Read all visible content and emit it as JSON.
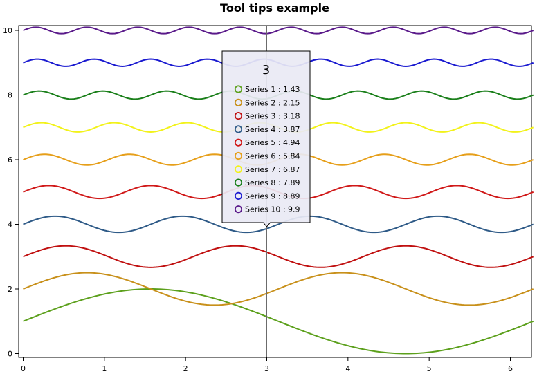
{
  "chart_data": {
    "type": "line",
    "title": "Tool tips example",
    "xlabel": "",
    "ylabel": "",
    "xlim": [
      0,
      6.283
    ],
    "ylim": [
      0,
      10
    ],
    "x_ticks": [
      0,
      1,
      2,
      3,
      4,
      5,
      6
    ],
    "y_ticks": [
      0,
      2,
      4,
      6,
      8,
      10
    ],
    "grid": false,
    "x_samples": 200,
    "series": [
      {
        "name": "Series 1",
        "offset": 1,
        "amplitude": 1.0,
        "frequency": 1,
        "color": "#5ca01c"
      },
      {
        "name": "Series 2",
        "offset": 2,
        "amplitude": 0.5,
        "frequency": 2,
        "color": "#c8901a"
      },
      {
        "name": "Series 3",
        "offset": 3,
        "amplitude": 0.333,
        "frequency": 3,
        "color": "#c01010"
      },
      {
        "name": "Series 4",
        "offset": 4,
        "amplitude": 0.25,
        "frequency": 4,
        "color": "#2e5a87"
      },
      {
        "name": "Series 5",
        "offset": 5,
        "amplitude": 0.2,
        "frequency": 5,
        "color": "#d01818"
      },
      {
        "name": "Series 6",
        "offset": 6,
        "amplitude": 0.167,
        "frequency": 6,
        "color": "#e69f1a"
      },
      {
        "name": "Series 7",
        "offset": 7,
        "amplitude": 0.143,
        "frequency": 7,
        "color": "#f2f21a"
      },
      {
        "name": "Series 8",
        "offset": 8,
        "amplitude": 0.125,
        "frequency": 8,
        "color": "#1a7f1a"
      },
      {
        "name": "Series 9",
        "offset": 9,
        "amplitude": 0.111,
        "frequency": 9,
        "color": "#1a1ad0"
      },
      {
        "name": "Series 10",
        "offset": 10,
        "amplitude": 0.1,
        "frequency": 10,
        "color": "#5a1a8a"
      }
    ],
    "tooltip": {
      "x": 3,
      "title": "3",
      "rows": [
        {
          "label": "Series 1 : 1.43",
          "color": "#5ca01c"
        },
        {
          "label": "Series 2 : 2.15",
          "color": "#c8901a"
        },
        {
          "label": "Series 3 : 3.18",
          "color": "#c01010"
        },
        {
          "label": "Series 4 : 3.87",
          "color": "#2e5a87"
        },
        {
          "label": "Series 5 : 4.94",
          "color": "#d01818"
        },
        {
          "label": "Series 6 : 5.84",
          "color": "#e69f1a"
        },
        {
          "label": "Series 7 : 6.87",
          "color": "#f2f21a"
        },
        {
          "label": "Series 8 : 7.89",
          "color": "#1a7f1a"
        },
        {
          "label": "Series 9 : 8.89",
          "color": "#1a1ad0"
        },
        {
          "label": "Series 10 : 9.9",
          "color": "#5a1a8a"
        }
      ]
    }
  }
}
